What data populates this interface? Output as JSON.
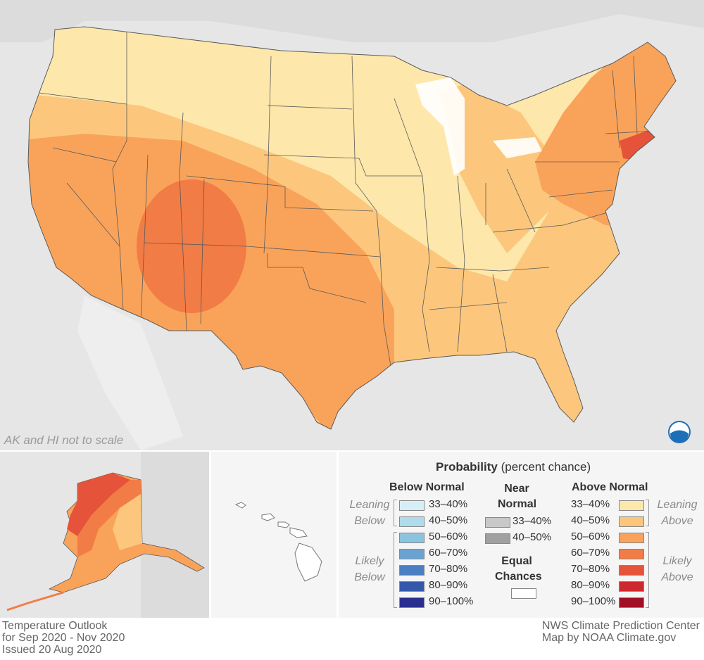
{
  "note": "AK and HI not to scale",
  "footer_left": [
    "Temperature Outlook",
    "for Sep 2020 - Nov 2020",
    "Issued 20 Aug 2020"
  ],
  "footer_right": [
    "NWS Climate Prediction Center",
    "Map by NOAA Climate.gov"
  ],
  "legend": {
    "title_bold": "Probability",
    "title_rest": " (percent chance)",
    "below": {
      "heading": "Below Normal",
      "leaning_label": [
        "Leaning",
        "Below"
      ],
      "likely_label": [
        "Likely",
        "Below"
      ],
      "items": [
        {
          "label": "33–40%",
          "color": "#d6eef7"
        },
        {
          "label": "40–50%",
          "color": "#b0dbec"
        },
        {
          "label": "50–60%",
          "color": "#8cc3df"
        },
        {
          "label": "60–70%",
          "color": "#6aa3d1"
        },
        {
          "label": "70–80%",
          "color": "#4a7fc1"
        },
        {
          "label": "80–90%",
          "color": "#3558ab"
        },
        {
          "label": "90–100%",
          "color": "#2a2f8f"
        }
      ]
    },
    "near": {
      "heading": [
        "Near",
        "Normal"
      ],
      "items": [
        {
          "label": "33–40%",
          "color": "#c8c8c8"
        },
        {
          "label": "40–50%",
          "color": "#a0a0a0"
        }
      ]
    },
    "equal": {
      "heading": [
        "Equal",
        "Chances"
      ],
      "color": "#ffffff"
    },
    "above": {
      "heading": "Above Normal",
      "leaning_label": [
        "Leaning",
        "Above"
      ],
      "likely_label": [
        "Likely",
        "Above"
      ],
      "items": [
        {
          "label": "33–40%",
          "color": "#fde7ab"
        },
        {
          "label": "40–50%",
          "color": "#fcc77c"
        },
        {
          "label": "50–60%",
          "color": "#f9a35a"
        },
        {
          "label": "60–70%",
          "color": "#f27c45"
        },
        {
          "label": "70–80%",
          "color": "#e5533a"
        },
        {
          "label": "80–90%",
          "color": "#cc2a2f"
        },
        {
          "label": "90–100%",
          "color": "#a10f26"
        }
      ]
    }
  }
}
